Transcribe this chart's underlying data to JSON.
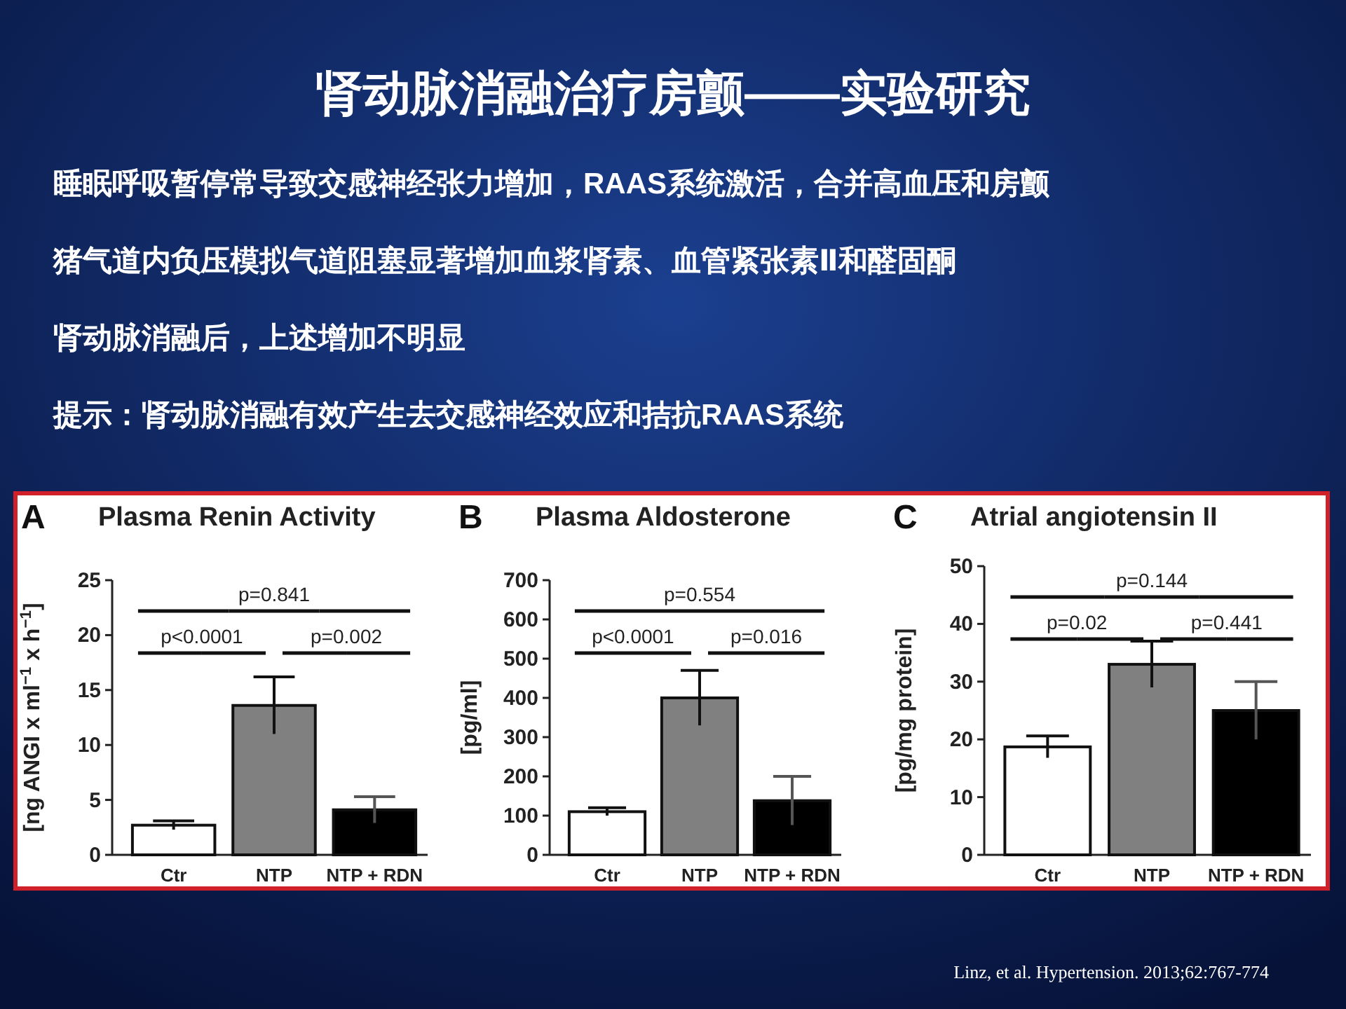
{
  "chart_data": [
    {
      "type": "other",
      "title": "肾动脉消融治疗房颤——实验研究",
      "annotations": [
        "睡眠呼吸暂停常导致交感神经张力增加，RAAS系统激活，合并高血压和房颤",
        "猪气道内负压模拟气道阻塞显著增加血浆肾素、血管紧张素Ⅱ和醛固酮",
        "肾动脉消融后，上述增加不明显",
        "提示：肾动脉消融有效产生去交感神经效应和拮抗RAAS系统",
        "Linz, et al. Hypertension. 2013;62:767-774"
      ]
    },
    {
      "type": "bar",
      "title": "Plasma Renin Activity",
      "ylabel": "[ng ANGI x ml$^{−1}$ x h$^{−1}$]",
      "categories": [
        "Ctr",
        "NTP",
        "NTP + RDN"
      ],
      "values": [
        2.7,
        13.6,
        4.1
      ],
      "errors": [
        0.4,
        2.6,
        1.2
      ],
      "colors": [
        "#ffffff",
        "#808080",
        "#000000"
      ],
      "ylim": [
        0,
        25
      ],
      "yticks": [
        0,
        5,
        10,
        15,
        20,
        25
      ],
      "annotations": [
        "A",
        "p<0.0001",
        "p=0.002",
        "p=0.841"
      ]
    },
    {
      "type": "bar",
      "title": "Plasma Aldosterone",
      "ylabel": "[pg/ml]",
      "categories": [
        "Ctr",
        "NTP",
        "NTP + RDN"
      ],
      "values": [
        110,
        400,
        138
      ],
      "errors": [
        10,
        70,
        62
      ],
      "colors": [
        "#ffffff",
        "#808080",
        "#000000"
      ],
      "ylim": [
        0,
        700
      ],
      "yticks": [
        0,
        100,
        200,
        300,
        400,
        500,
        600,
        700
      ],
      "annotations": [
        "B",
        "p<0.0001",
        "p=0.016",
        "p=0.554"
      ]
    },
    {
      "type": "bar",
      "title": "Atrial angiotensin II",
      "ylabel": "[pg/mg protein]",
      "categories": [
        "Ctr",
        "NTP",
        "NTP + RDN"
      ],
      "values": [
        18.7,
        33,
        25
      ],
      "errors": [
        1.9,
        4,
        5
      ],
      "colors": [
        "#ffffff",
        "#808080",
        "#000000"
      ],
      "ylim": [
        0,
        50
      ],
      "yticks": [
        0,
        10,
        20,
        30,
        40,
        50
      ],
      "annotations": [
        "C",
        "p=0.02",
        "p=0.441",
        "p=0.144"
      ]
    }
  ]
}
